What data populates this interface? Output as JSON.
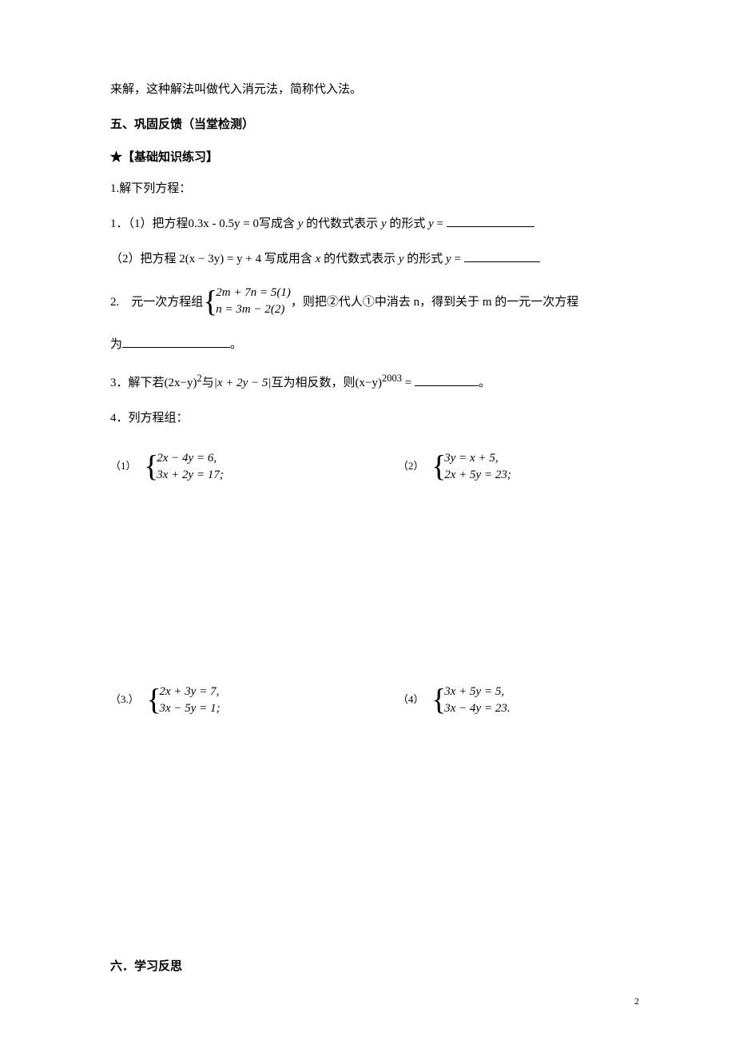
{
  "intro_line": "来解，这种解法叫做代入消元法，简称代入法。",
  "section5_title": "五、巩固反馈（当堂检测）",
  "practice_title": "★【基础知识练习】",
  "q1_title": "1.解下列方程：",
  "q1_1_prefix": "1．（1）把方程",
  "q1_1_eq": "0.3x - 0.5y = 0",
  "q1_1_mid": "写成含 ",
  "q1_1_var1": "y",
  "q1_1_mid2": " 的代数式表示 ",
  "q1_1_var2": "y",
  "q1_1_mid3": " 的形式 ",
  "q1_1_var3": "y",
  "q1_1_eq_sign": " = ",
  "q1_2_prefix": "（2）把方程 ",
  "q1_2_eq": "2(x − 3y) = y + 4",
  "q1_2_mid": " 写成用含 ",
  "q1_2_var1": "x",
  "q1_2_mid2": " 的代数式表示 ",
  "q1_2_var2": "y",
  "q1_2_mid3": " 的形式 ",
  "q1_2_var3": "y",
  "q1_2_eq_sign": " = ",
  "q2_prefix": "2.　元一次方程组",
  "q2_brace_row1": "2m + 7n = 5(1)",
  "q2_brace_row2": "n = 3m − 2(2)",
  "q2_suffix": "，则把②代人①中消去 n，得到关于 m 的一元一次方程",
  "q2_line2_prefix": "为",
  "q2_line2_suffix": "。",
  "q3_prefix": "3．解下若(2x−y)",
  "q3_sup1": "2",
  "q3_mid1": "与",
  "q3_abs": "|x + 2y − 5|",
  "q3_mid2": "互为相反数，则(x−y)",
  "q3_sup2": "2003",
  "q3_eq": " = ",
  "q3_suffix": "。",
  "q4_title": "4．列方程组：",
  "eq1_num": "（1）",
  "eq1_row1": "2x − 4y = 6,",
  "eq1_row2": "3x + 2y = 17;",
  "eq2_num": "（2）",
  "eq2_row1": "3y = x + 5,",
  "eq2_row2": "2x + 5y = 23;",
  "eq3_num": "（3.）",
  "eq3_row1": "2x + 3y = 7,",
  "eq3_row2": "3x − 5y = 1;",
  "eq4_num": "（4）",
  "eq4_row1": "3x + 5y = 5,",
  "eq4_row2": "3x − 4y = 23.",
  "section6_title": "六．学习反思",
  "page_number": "2",
  "colors": {
    "background": "#ffffff",
    "text": "#000000"
  },
  "blank_widths": {
    "q1_1": 110,
    "q1_2": 95,
    "q2": 135,
    "q3": 80
  }
}
